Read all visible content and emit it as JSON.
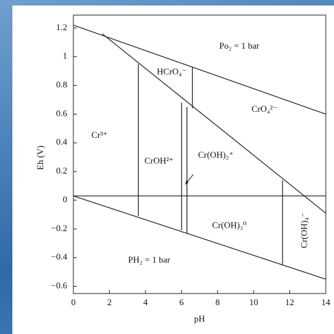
{
  "chart_data": {
    "type": "line",
    "x_label": "pH",
    "y_label": "Eh (V)",
    "xlim": [
      0,
      14
    ],
    "ylim": [
      -0.65,
      1.29
    ],
    "xticks": [
      0,
      2,
      4,
      6,
      8,
      10,
      12,
      14
    ],
    "yticks": [
      {
        "value": -0.6,
        "label": "−0.6"
      },
      {
        "value": -0.4,
        "label": "−0.4"
      },
      {
        "value": -0.2,
        "label": "−0.2"
      },
      0,
      0.2,
      0.4,
      0.6,
      0.8,
      1,
      1.2
    ],
    "series": [
      {
        "color": "#222222",
        "x": [
          0,
          14
        ],
        "values": [
          1.22,
          0.6
        ]
      },
      {
        "color": "#222222",
        "x": [
          1.6,
          14
        ],
        "values": [
          1.16,
          -0.09
        ]
      },
      {
        "color": "#222222",
        "x": [
          0,
          14
        ],
        "values": [
          0.03,
          -0.55
        ]
      },
      {
        "color": "#222222",
        "x": [
          0,
          14
        ],
        "values": [
          0.03,
          0.03
        ]
      },
      {
        "color": "#222222",
        "x": [
          3.6,
          3.6
        ],
        "values": [
          0.95,
          -0.11
        ]
      },
      {
        "color": "#222222",
        "x": [
          6.0,
          6.0
        ],
        "values": [
          0.68,
          -0.21
        ]
      },
      {
        "color": "#222222",
        "x": [
          6.3,
          6.3
        ],
        "values": [
          0.65,
          -0.23
        ]
      },
      {
        "color": "#222222",
        "x": [
          6.6,
          6.6
        ],
        "values": [
          0.93,
          0.64
        ]
      },
      {
        "color": "#222222",
        "x": [
          11.6,
          11.6
        ],
        "values": [
          0.14,
          -0.45
        ]
      }
    ],
    "annotations": [
      "Po₂ = 1 bar",
      "HCrO₄⁻",
      "CrO₄²⁻",
      "Cr³⁺",
      "CrOH²⁺",
      "Cr(OH)₂⁺",
      "Cr(OH)₃⁰",
      "PH₂ = 1 bar",
      "Cr(OH)₄⁻"
    ]
  }
}
